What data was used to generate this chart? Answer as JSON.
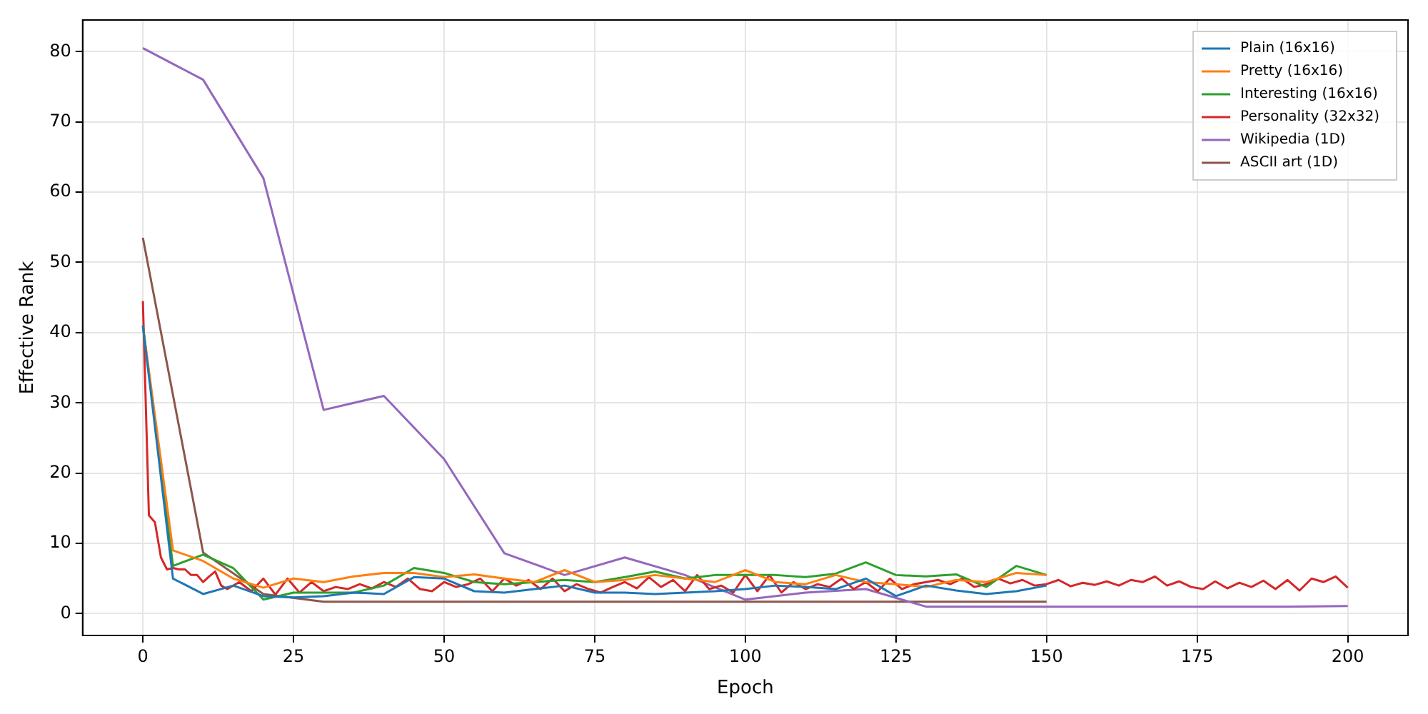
{
  "chart_data": {
    "type": "line",
    "xlabel": "Epoch",
    "ylabel": "Effective Rank",
    "xlim": [
      -10,
      210
    ],
    "ylim": [
      -3.1,
      84.5
    ],
    "xticks": [
      0,
      25,
      50,
      75,
      100,
      125,
      150,
      175,
      200
    ],
    "yticks": [
      0,
      10,
      20,
      30,
      40,
      50,
      60,
      70,
      80
    ],
    "grid": true,
    "legend": "top right",
    "marker": "none",
    "line_style": "solid",
    "series": [
      {
        "name": "Plain (16x16)",
        "color": "#1f77b4",
        "x": [
          0,
          5,
          10,
          15,
          20,
          25,
          30,
          35,
          40,
          45,
          50,
          55,
          60,
          65,
          70,
          75,
          80,
          85,
          90,
          95,
          100,
          105,
          110,
          115,
          120,
          125,
          130,
          135,
          140,
          145,
          150
        ],
        "values": [
          41,
          5,
          2.8,
          4,
          2.5,
          2.3,
          2.5,
          3,
          2.8,
          5.2,
          5,
          3.2,
          3,
          3.5,
          4,
          3,
          3,
          2.8,
          3,
          3.2,
          3.5,
          4,
          3.8,
          3.5,
          5,
          2.5,
          4,
          3.3,
          2.8,
          3.2,
          4
        ]
      },
      {
        "name": "Pretty (16x16)",
        "color": "#ff7f0e",
        "x": [
          0,
          5,
          10,
          15,
          20,
          25,
          30,
          35,
          40,
          45,
          50,
          55,
          60,
          65,
          70,
          75,
          80,
          85,
          90,
          95,
          100,
          105,
          110,
          115,
          120,
          125,
          130,
          135,
          140,
          145,
          150
        ],
        "values": [
          41,
          9,
          7.5,
          5,
          3.7,
          5,
          4.5,
          5.3,
          5.8,
          5.8,
          5.2,
          5.6,
          5,
          4.5,
          6.2,
          4.5,
          4.8,
          5.5,
          5,
          4.5,
          6.2,
          4.5,
          4.2,
          5.5,
          4.5,
          4.2,
          3.8,
          4.8,
          4.5,
          5.8,
          5.5
        ]
      },
      {
        "name": "Interesting (16x16)",
        "color": "#2ca02c",
        "x": [
          0,
          5,
          10,
          15,
          20,
          25,
          30,
          35,
          40,
          45,
          50,
          55,
          60,
          65,
          70,
          75,
          80,
          85,
          90,
          95,
          100,
          105,
          110,
          115,
          120,
          125,
          130,
          135,
          140,
          145,
          150
        ],
        "values": [
          41,
          6.8,
          8.4,
          6.5,
          2,
          3,
          3,
          3,
          4,
          6.5,
          5.8,
          4.5,
          4.2,
          4.5,
          4.8,
          4.5,
          5.2,
          6,
          5,
          5.5,
          5.5,
          5.5,
          5.2,
          5.7,
          7.3,
          5.5,
          5.3,
          5.6,
          3.8,
          6.8,
          5.5
        ]
      },
      {
        "name": "Personality (32x32)",
        "color": "#d62728",
        "x": [
          0,
          1,
          2,
          3,
          4,
          5,
          6,
          7,
          8,
          9,
          10,
          11,
          12,
          13,
          14,
          16,
          18,
          20,
          22,
          24,
          26,
          28,
          30,
          32,
          34,
          36,
          38,
          40,
          42,
          44,
          46,
          48,
          50,
          52,
          54,
          56,
          58,
          60,
          62,
          64,
          66,
          68,
          70,
          72,
          74,
          76,
          78,
          80,
          82,
          84,
          86,
          88,
          90,
          92,
          94,
          96,
          98,
          100,
          102,
          104,
          106,
          108,
          110,
          112,
          114,
          116,
          118,
          120,
          122,
          124,
          126,
          128,
          130,
          132,
          134,
          136,
          138,
          140,
          142,
          144,
          146,
          148,
          150,
          152,
          154,
          156,
          158,
          160,
          162,
          164,
          166,
          168,
          170,
          172,
          174,
          176,
          178,
          180,
          182,
          184,
          186,
          188,
          190,
          192,
          194,
          196,
          198,
          200
        ],
        "values": [
          44.5,
          14,
          13,
          8,
          6.3,
          6.5,
          6.3,
          6.3,
          5.5,
          5.5,
          4.5,
          5.3,
          6,
          4,
          3.5,
          4.5,
          3.2,
          5,
          2.7,
          5,
          3,
          4.5,
          3.2,
          3.8,
          3.5,
          4.2,
          3.6,
          4.5,
          3.8,
          5,
          3.5,
          3.2,
          4.5,
          3.8,
          4.2,
          5,
          3.2,
          5,
          4,
          4.8,
          3.5,
          5,
          3.2,
          4.2,
          3.5,
          3,
          3.8,
          4.5,
          3.6,
          5.2,
          3.8,
          4.8,
          3.2,
          5.5,
          3.5,
          4,
          3,
          5.5,
          3.2,
          5.5,
          3,
          4.5,
          3.5,
          4.2,
          3.8,
          5,
          3.5,
          4.5,
          3.2,
          5,
          3.5,
          4.2,
          4.5,
          4.8,
          4.2,
          5,
          3.8,
          4.2,
          5,
          4.3,
          4.8,
          4,
          4.2,
          4.8,
          3.9,
          4.4,
          4.1,
          4.6,
          4,
          4.8,
          4.5,
          5.3,
          4,
          4.6,
          3.8,
          3.5,
          4.6,
          3.6,
          4.4,
          3.8,
          4.7,
          3.5,
          4.8,
          3.3,
          5,
          4.5,
          5.3,
          3.7
        ]
      },
      {
        "name": "Wikipedia (1D)",
        "color": "#9467bd",
        "x": [
          0,
          10,
          20,
          30,
          40,
          50,
          60,
          70,
          80,
          90,
          100,
          110,
          120,
          130,
          140,
          150,
          160,
          170,
          180,
          190,
          200
        ],
        "values": [
          80.5,
          76,
          62,
          29,
          31,
          22,
          8.6,
          5.5,
          8,
          5.5,
          2,
          3,
          3.5,
          1,
          1,
          1,
          1,
          1,
          1,
          1,
          1.1
        ]
      },
      {
        "name": "ASCII art (1D)",
        "color": "#8c564b",
        "x": [
          0,
          10,
          20,
          30,
          40,
          50,
          60,
          70,
          80,
          90,
          100,
          110,
          120,
          130,
          140,
          150
        ],
        "values": [
          53.5,
          8.7,
          2.8,
          1.7,
          1.7,
          1.7,
          1.7,
          1.7,
          1.7,
          1.7,
          1.7,
          1.7,
          1.7,
          1.7,
          1.7,
          1.7
        ]
      }
    ]
  }
}
